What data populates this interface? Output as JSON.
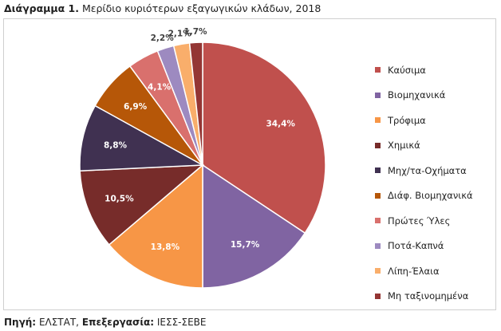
{
  "figure": {
    "title_prefix": "Διάγραμμα 1.",
    "title_text": "Μερίδιο κυριότερων εξαγωγικών κλάδων, 2018"
  },
  "source": {
    "label1": "Πηγή:",
    "value1": "ΕΛΣΤΑΤ,",
    "label2": "Επεξεργασία:",
    "value2": "ΙΕΣΣ-ΣΕΒΕ"
  },
  "chart_data": {
    "type": "pie",
    "title": "Μερίδιο κυριότερων εξαγωγικών κλάδων, 2018",
    "unit": "%",
    "start_angle": "12 o'clock, clockwise",
    "legend_position": "right",
    "slices": [
      {
        "name": "Καύσιμα",
        "value": 34.4,
        "label": "34,4%",
        "color": "#c0504d"
      },
      {
        "name": "Βιομηχανικά",
        "value": 15.7,
        "label": "15,7%",
        "color": "#8064a2"
      },
      {
        "name": "Τρόφιμα",
        "value": 13.8,
        "label": "13,8%",
        "color": "#f79646"
      },
      {
        "name": "Χημικά",
        "value": 10.5,
        "label": "10,5%",
        "color": "#772c2a"
      },
      {
        "name": "Μηχ/τα-Οχήματα",
        "value": 8.8,
        "label": "8,8%",
        "color": "#403151"
      },
      {
        "name": "Διάφ. Βιομηχανικά",
        "value": 6.9,
        "label": "6,9%",
        "color": "#b65708"
      },
      {
        "name": "Πρώτες Ύλες",
        "value": 4.1,
        "label": "4,1%",
        "color": "#d9706d"
      },
      {
        "name": "Ποτά-Καπνά",
        "value": 2.2,
        "label": "2,2%",
        "color": "#9d8ac0"
      },
      {
        "name": "Λίπη-Έλαια",
        "value": 2.1,
        "label": "2,1%",
        "color": "#f9ae6b"
      },
      {
        "name": "Μη ταξινομημένα",
        "value": 1.7,
        "label": "1,7%",
        "color": "#943634"
      }
    ]
  }
}
